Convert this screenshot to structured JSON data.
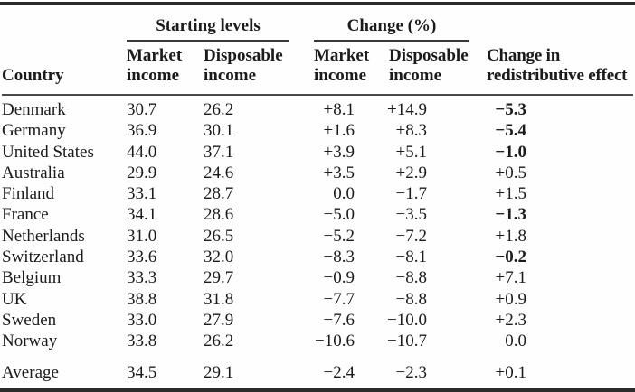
{
  "page": {
    "background": "#fefefe",
    "text_color": "#1b1b1b",
    "rule_color": "#2b2b2b"
  },
  "table": {
    "groups": [
      {
        "label": "Starting levels"
      },
      {
        "label": "Change (%)"
      }
    ],
    "columns": [
      {
        "label": "Country"
      },
      {
        "label": "Market\nincome"
      },
      {
        "label": "Disposable\nincome"
      },
      {
        "label": "Market\nincome"
      },
      {
        "label": "Disposable\nincome"
      },
      {
        "label": "Change in\nredistributive effect"
      }
    ],
    "rows": [
      {
        "country": "Denmark",
        "values": [
          "30.7",
          "26.2",
          "+8.1",
          "+14.9",
          "−5.3"
        ],
        "bold_last": true
      },
      {
        "country": "Germany",
        "values": [
          "36.9",
          "30.1",
          "+1.6",
          "+8.3",
          "−5.4"
        ],
        "bold_last": true
      },
      {
        "country": "United States",
        "values": [
          "44.0",
          "37.1",
          "+3.9",
          "+5.1",
          "−1.0"
        ],
        "bold_last": true
      },
      {
        "country": "Australia",
        "values": [
          "29.9",
          "24.6",
          "+3.5",
          "+2.9",
          "+0.5"
        ],
        "bold_last": false
      },
      {
        "country": "Finland",
        "values": [
          "33.1",
          "28.7",
          "0.0",
          "−1.7",
          "+1.5"
        ],
        "bold_last": false
      },
      {
        "country": "France",
        "values": [
          "34.1",
          "28.6",
          "−5.0",
          "−3.5",
          "−1.3"
        ],
        "bold_last": true
      },
      {
        "country": "Netherlands",
        "values": [
          "31.0",
          "26.5",
          "−5.2",
          "−7.2",
          "+1.8"
        ],
        "bold_last": false
      },
      {
        "country": "Switzerland",
        "values": [
          "33.6",
          "32.0",
          "−8.3",
          "−8.1",
          "−0.2"
        ],
        "bold_last": true
      },
      {
        "country": "Belgium",
        "values": [
          "33.3",
          "29.7",
          "−0.9",
          "−8.8",
          "+7.1"
        ],
        "bold_last": false
      },
      {
        "country": "UK",
        "values": [
          "38.8",
          "31.8",
          "−7.7",
          "−8.8",
          "+0.9"
        ],
        "bold_last": false
      },
      {
        "country": "Sweden",
        "values": [
          "33.0",
          "27.9",
          "−7.6",
          "−10.0",
          "+2.3"
        ],
        "bold_last": false
      },
      {
        "country": "Norway",
        "values": [
          "33.8",
          "26.2",
          "−10.6",
          "−10.7",
          "0.0"
        ],
        "bold_last": false
      }
    ],
    "average": {
      "country": "Average",
      "values": [
        "34.5",
        "29.1",
        "−2.4",
        "−2.3",
        "+0.1"
      ],
      "bold_last": false
    }
  }
}
